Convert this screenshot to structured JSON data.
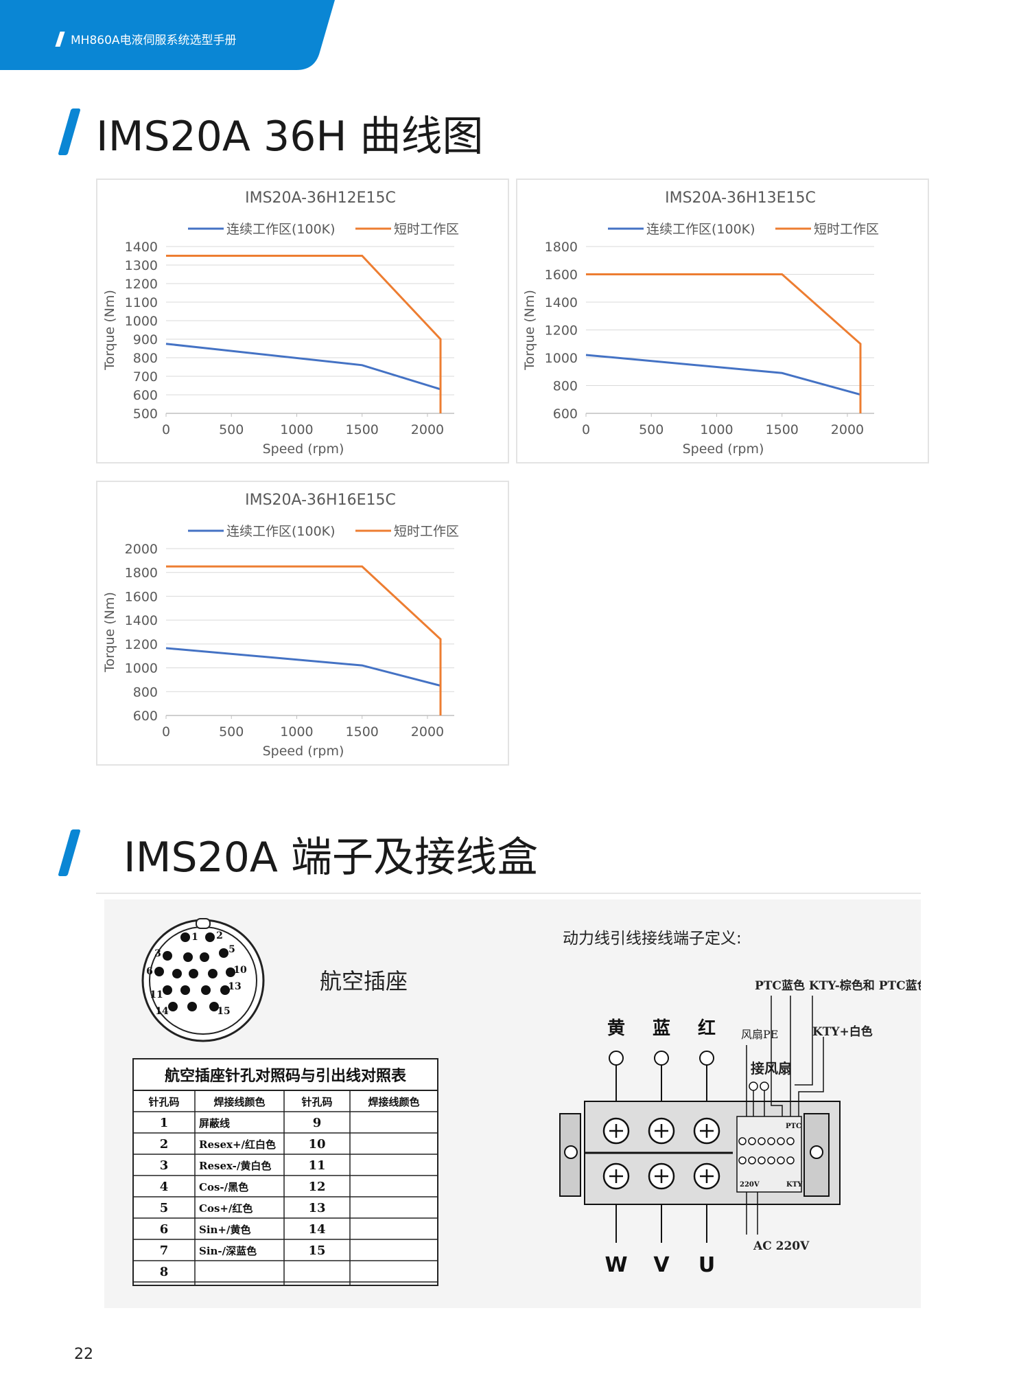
{
  "header": {
    "title": "MH860A电液伺服系统选型手册",
    "bg_color": "#0a86d4"
  },
  "section1": {
    "title": "IMS20A 36H 曲线图"
  },
  "section2": {
    "title": "IMS20A  端子及接线盒"
  },
  "legend": {
    "continuous": "连续工作区(100K)",
    "short": "短时工作区"
  },
  "colors": {
    "continuous": "#4472c4",
    "short": "#ed7d31",
    "accent": "#0a86d4"
  },
  "chart_data": [
    {
      "type": "line",
      "title": "IMS20A-36H12E15C",
      "xlabel": "Speed (rpm)",
      "ylabel": "Torque (Nm)",
      "xlim": [
        0,
        2100
      ],
      "ylim": [
        500,
        1400
      ],
      "xticks": [
        0,
        500,
        1000,
        1500,
        2000
      ],
      "yticks": [
        500,
        600,
        700,
        800,
        900,
        1000,
        1100,
        1200,
        1300,
        1400
      ],
      "series": [
        {
          "name": "连续工作区(100K)",
          "points": [
            [
              0,
              875
            ],
            [
              1500,
              760
            ],
            [
              2100,
              630
            ]
          ]
        },
        {
          "name": "短时工作区",
          "points": [
            [
              0,
              1350
            ],
            [
              1500,
              1350
            ],
            [
              2100,
              900
            ],
            [
              2100,
              500
            ]
          ]
        }
      ]
    },
    {
      "type": "line",
      "title": "IMS20A-36H13E15C",
      "xlabel": "Speed (rpm)",
      "ylabel": "Torque (Nm)",
      "xlim": [
        0,
        2100
      ],
      "ylim": [
        600,
        1800
      ],
      "xticks": [
        0,
        500,
        1000,
        1500,
        2000
      ],
      "yticks": [
        600,
        800,
        1000,
        1200,
        1400,
        1600,
        1800
      ],
      "series": [
        {
          "name": "连续工作区(100K)",
          "points": [
            [
              0,
              1020
            ],
            [
              1500,
              890
            ],
            [
              2100,
              735
            ]
          ]
        },
        {
          "name": "短时工作区",
          "points": [
            [
              0,
              1600
            ],
            [
              1500,
              1600
            ],
            [
              2100,
              1100
            ],
            [
              2100,
              600
            ]
          ]
        }
      ]
    },
    {
      "type": "line",
      "title": "IMS20A-36H16E15C",
      "xlabel": "Speed (rpm)",
      "ylabel": "Torque (Nm)",
      "xlim": [
        0,
        2100
      ],
      "ylim": [
        600,
        2000
      ],
      "xticks": [
        0,
        500,
        1000,
        1500,
        2000
      ],
      "yticks": [
        600,
        800,
        1000,
        1200,
        1400,
        1600,
        1800,
        2000
      ],
      "series": [
        {
          "name": "连续工作区(100K)",
          "points": [
            [
              0,
              1165
            ],
            [
              1500,
              1020
            ],
            [
              2100,
              850
            ]
          ]
        },
        {
          "name": "短时工作区",
          "points": [
            [
              0,
              1850
            ],
            [
              1500,
              1850
            ],
            [
              2100,
              1240
            ],
            [
              2100,
              600
            ]
          ]
        }
      ]
    }
  ],
  "connector": {
    "label": "航空插座",
    "pins": [
      "1",
      "2",
      "3",
      "4",
      "5",
      "6",
      "7",
      "8",
      "9",
      "10",
      "11",
      "12",
      "13",
      "14",
      "15"
    ]
  },
  "pin_table": {
    "title": "航空插座针孔对照码与引出线对照表",
    "headers": [
      "针孔码",
      "焊接线颜色",
      "针孔码",
      "焊接线颜色"
    ],
    "rows": [
      [
        "1",
        "屏蔽线",
        "9",
        ""
      ],
      [
        "2",
        "Resex+/红白色",
        "10",
        ""
      ],
      [
        "3",
        "Resex-/黄白色",
        "11",
        ""
      ],
      [
        "4",
        "Cos-/黑色",
        "12",
        ""
      ],
      [
        "5",
        "Cos+/红色",
        "13",
        ""
      ],
      [
        "6",
        "Sin+/黄色",
        "14",
        ""
      ],
      [
        "7",
        "Sin-/深蓝色",
        "15",
        ""
      ],
      [
        "8",
        "",
        "",
        ""
      ]
    ]
  },
  "terminal": {
    "title": "动力线引线接线端子定义:",
    "ptc_label": "PTC蓝色 KTY-棕色和 PTC蓝色",
    "kty_plus_label": "KTY+白色",
    "fan_pe_label": "风扇PE",
    "fan_label": "接风扇",
    "top_colors": [
      "黄",
      "蓝",
      "红"
    ],
    "bottom_phases": [
      "W",
      "V",
      "U"
    ],
    "ptc_small": "PTC",
    "v220_small": "220V",
    "kty_small": "KTY",
    "ac_label": "AC 220V"
  },
  "page_number": "22"
}
